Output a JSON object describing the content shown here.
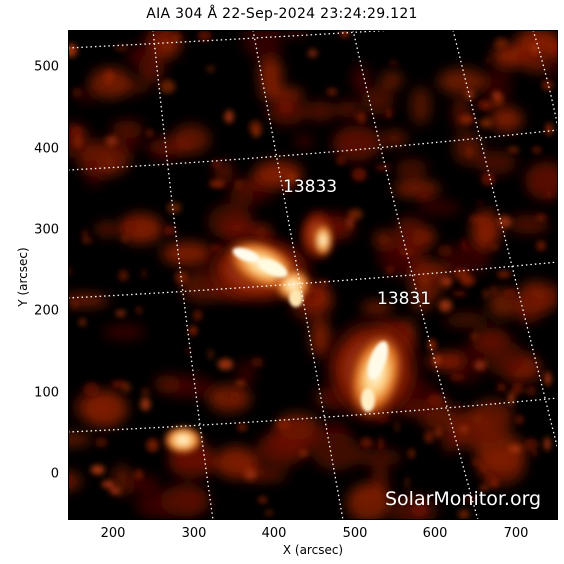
{
  "title": "AIA 304 Å 22-Sep-2024 23:24:29.121",
  "axes": {
    "xlabel": "X (arcsec)",
    "ylabel": "Y (arcsec)",
    "xticks": [
      "200",
      "300",
      "400",
      "500",
      "600",
      "700"
    ],
    "yticks": [
      "500",
      "400",
      "300",
      "200",
      "100",
      "0"
    ]
  },
  "regions": [
    {
      "label": "13833"
    },
    {
      "label": "13831"
    }
  ],
  "watermark": "SolarMonitor.org",
  "colors": {
    "background": "#000000",
    "emission_low": "#5a0a00",
    "emission_mid": "#c84a10",
    "emission_high": "#fff4d0",
    "grid": "#ffffff"
  }
}
